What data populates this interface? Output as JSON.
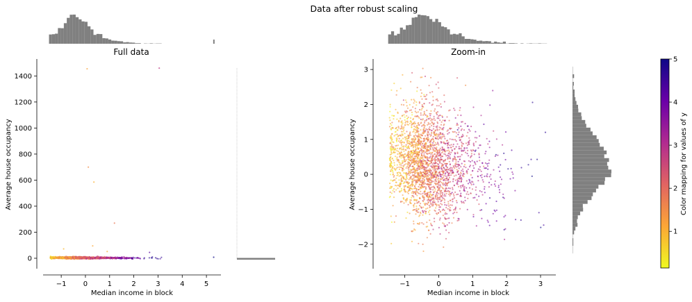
{
  "figure": {
    "suptitle": "Data after robust scaling"
  },
  "colorbar": {
    "label": "Color mapping for values of y",
    "ticks": [
      "1",
      "2",
      "3",
      "4",
      "5"
    ],
    "range": [
      0.15,
      5.0
    ],
    "colormap": "plasma_r",
    "colors": [
      "#f0f921",
      "#fca636",
      "#e16462",
      "#b12a90",
      "#6a00a8",
      "#0d0887"
    ]
  },
  "chart_data": [
    {
      "id": "full",
      "type": "scatter",
      "title": "Full data",
      "xlabel": "Median income in block",
      "ylabel": "Average house occupancy",
      "xlim": [
        -1.75,
        5.6
      ],
      "ylim": [
        -80,
        1530
      ],
      "xticks": [
        "-1",
        "0",
        "1",
        "2",
        "3",
        "4",
        "5"
      ],
      "yticks": [
        "0",
        "200",
        "400",
        "600",
        "800",
        "1000",
        "1200",
        "1400"
      ],
      "outliers": [
        {
          "x": 3.05,
          "y": 1460,
          "c": 2.8
        },
        {
          "x": 0.07,
          "y": 1455,
          "c": 1.2
        },
        {
          "x": 0.35,
          "y": 585,
          "c": 1.0
        },
        {
          "x": 0.12,
          "y": 700,
          "c": 1.5
        },
        {
          "x": 1.2,
          "y": 270,
          "c": 1.8
        },
        {
          "x": -0.9,
          "y": 72,
          "c": 0.9
        },
        {
          "x": 0.3,
          "y": 95,
          "c": 1.1
        },
        {
          "x": 2.65,
          "y": 45,
          "c": 4.2
        },
        {
          "x": 0.9,
          "y": 52,
          "c": 1.0
        },
        {
          "x": -1.35,
          "y": 10,
          "c": 0.8
        },
        {
          "x": 5.3,
          "y": 8,
          "c": 5.0
        }
      ]
    },
    {
      "id": "zoom",
      "type": "scatter",
      "title": "Zoom-in",
      "xlabel": "Median income in block",
      "ylabel": "Average house occupancy",
      "xlim": [
        -1.75,
        3.45
      ],
      "ylim": [
        -2.7,
        3.3
      ],
      "xticks": [
        "-1",
        "0",
        "1",
        "2",
        "3"
      ],
      "yticks": [
        "-2",
        "-1",
        "0",
        "1",
        "2",
        "3"
      ]
    }
  ]
}
